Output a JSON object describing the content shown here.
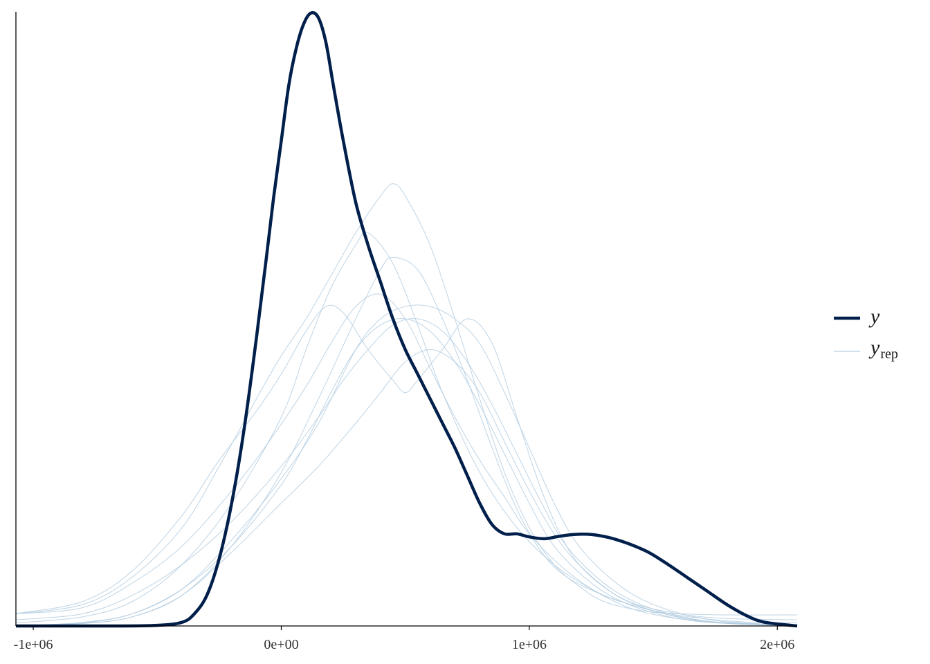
{
  "chart_data": {
    "type": "line",
    "title": "",
    "xlabel": "",
    "ylabel": "",
    "xlim": [
      -1070000,
      2080000
    ],
    "ylim": [
      0,
      1
    ],
    "x_ticks": [
      {
        "value": -1000000,
        "label": "-1e+06"
      },
      {
        "value": 0,
        "label": "0e+00"
      },
      {
        "value": 1000000,
        "label": "1e+06"
      },
      {
        "value": 2000000,
        "label": "2e+06"
      }
    ],
    "y_ticks_shown": false,
    "grid": false,
    "legend": {
      "position": "right",
      "entries": [
        {
          "label": "y",
          "subscript": "",
          "series": "y"
        },
        {
          "label": "y",
          "subscript": "rep",
          "series": "yrep"
        }
      ]
    },
    "colors": {
      "y": "#011f4b",
      "yrep": "#b3cde0"
    },
    "series": [
      {
        "name": "y",
        "role": "y",
        "x": [
          -1070000,
          -700000,
          -500000,
          -400000,
          -350000,
          -300000,
          -250000,
          -200000,
          -150000,
          -100000,
          -60000,
          -30000,
          0,
          30000,
          60000,
          90000,
          120000,
          150000,
          180000,
          210000,
          250000,
          300000,
          350000,
          400000,
          450000,
          500000,
          550000,
          600000,
          650000,
          700000,
          750000,
          800000,
          850000,
          900000,
          950000,
          1000000,
          1060000,
          1120000,
          1180000,
          1250000,
          1320000,
          1400000,
          1480000,
          1560000,
          1640000,
          1720000,
          1800000,
          1880000,
          1950000,
          2080000
        ],
        "y": [
          0.0,
          0.0,
          0.001,
          0.006,
          0.02,
          0.05,
          0.11,
          0.2,
          0.32,
          0.47,
          0.6,
          0.7,
          0.79,
          0.88,
          0.94,
          0.98,
          0.998,
          0.99,
          0.95,
          0.88,
          0.79,
          0.69,
          0.62,
          0.56,
          0.5,
          0.45,
          0.41,
          0.37,
          0.33,
          0.29,
          0.245,
          0.2,
          0.165,
          0.15,
          0.15,
          0.145,
          0.142,
          0.146,
          0.149,
          0.149,
          0.144,
          0.134,
          0.12,
          0.1,
          0.078,
          0.056,
          0.034,
          0.016,
          0.006,
          0.0
        ]
      },
      {
        "name": "",
        "role": "yrep",
        "x": [
          -1070000,
          -800000,
          -600000,
          -400000,
          -250000,
          -100000,
          0,
          100000,
          200000,
          300000,
          400000,
          450000,
          500000,
          600000,
          700000,
          800000,
          900000,
          1000000,
          1100000,
          1200000,
          1300000,
          1450000,
          1600000,
          1800000,
          2080000
        ],
        "y": [
          0.02,
          0.035,
          0.08,
          0.16,
          0.26,
          0.37,
          0.44,
          0.5,
          0.57,
          0.64,
          0.7,
          0.72,
          0.7,
          0.62,
          0.5,
          0.37,
          0.25,
          0.16,
          0.1,
          0.065,
          0.04,
          0.025,
          0.02,
          0.018,
          0.018
        ]
      },
      {
        "name": "",
        "role": "yrep",
        "x": [
          -1070000,
          -800000,
          -600000,
          -400000,
          -200000,
          0,
          150000,
          300000,
          400000,
          450000,
          550000,
          650000,
          750000,
          850000,
          950000,
          1050000,
          1150000,
          1300000,
          1450000,
          1600000,
          1800000,
          2080000
        ],
        "y": [
          0.0,
          0.004,
          0.015,
          0.05,
          0.13,
          0.25,
          0.37,
          0.5,
          0.58,
          0.6,
          0.58,
          0.5,
          0.4,
          0.29,
          0.19,
          0.12,
          0.08,
          0.05,
          0.03,
          0.015,
          0.004,
          0.0
        ]
      },
      {
        "name": "",
        "role": "yrep",
        "x": [
          -1070000,
          -800000,
          -600000,
          -400000,
          -200000,
          0,
          100000,
          200000,
          300000,
          350000,
          450000,
          550000,
          650000,
          800000,
          950000,
          1100000,
          1250000,
          1400000,
          1550000,
          1750000,
          2080000
        ],
        "y": [
          0.005,
          0.015,
          0.04,
          0.1,
          0.2,
          0.34,
          0.45,
          0.55,
          0.62,
          0.64,
          0.59,
          0.49,
          0.38,
          0.25,
          0.16,
          0.1,
          0.06,
          0.03,
          0.015,
          0.006,
          0.002
        ]
      },
      {
        "name": "",
        "role": "yrep",
        "x": [
          -1070000,
          -800000,
          -600000,
          -400000,
          -250000,
          -100000,
          0,
          100000,
          180000,
          250000,
          350000,
          450000,
          500000,
          550000,
          650000,
          750000,
          850000,
          950000,
          1050000,
          1150000,
          1250000,
          1400000,
          1600000,
          1800000,
          2080000
        ],
        "y": [
          0.02,
          0.04,
          0.09,
          0.18,
          0.27,
          0.35,
          0.41,
          0.48,
          0.52,
          0.51,
          0.45,
          0.4,
          0.38,
          0.4,
          0.45,
          0.5,
          0.46,
          0.34,
          0.22,
          0.13,
          0.08,
          0.04,
          0.02,
          0.012,
          0.01
        ]
      },
      {
        "name": "",
        "role": "yrep",
        "x": [
          -1070000,
          -800000,
          -600000,
          -400000,
          -200000,
          0,
          150000,
          300000,
          400000,
          500000,
          600000,
          700000,
          800000,
          900000,
          1000000,
          1100000,
          1200000,
          1350000,
          1500000,
          1700000,
          1900000,
          2080000
        ],
        "y": [
          0.0,
          0.006,
          0.02,
          0.06,
          0.14,
          0.24,
          0.33,
          0.45,
          0.5,
          0.52,
          0.52,
          0.5,
          0.46,
          0.38,
          0.29,
          0.2,
          0.13,
          0.07,
          0.035,
          0.012,
          0.004,
          0.002
        ]
      },
      {
        "name": "",
        "role": "yrep",
        "x": [
          -1070000,
          -800000,
          -600000,
          -400000,
          -200000,
          0,
          100000,
          200000,
          300000,
          400000,
          500000,
          600000,
          700000,
          800000,
          900000,
          1000000,
          1100000,
          1250000,
          1400000,
          1600000,
          1800000,
          2080000
        ],
        "y": [
          0.0,
          0.005,
          0.02,
          0.06,
          0.13,
          0.23,
          0.3,
          0.38,
          0.45,
          0.49,
          0.5,
          0.48,
          0.43,
          0.36,
          0.28,
          0.2,
          0.13,
          0.07,
          0.035,
          0.012,
          0.004,
          0.002
        ]
      },
      {
        "name": "",
        "role": "yrep",
        "x": [
          -1070000,
          -800000,
          -600000,
          -400000,
          -200000,
          0,
          150000,
          300000,
          400000,
          500000,
          600000,
          700000,
          800000,
          900000,
          1000000,
          1100000,
          1200000,
          1350000,
          1500000,
          1700000,
          2080000
        ],
        "y": [
          0.0,
          0.004,
          0.015,
          0.05,
          0.12,
          0.2,
          0.26,
          0.33,
          0.38,
          0.43,
          0.45,
          0.43,
          0.38,
          0.3,
          0.22,
          0.15,
          0.1,
          0.05,
          0.025,
          0.008,
          0.0
        ]
      },
      {
        "name": "",
        "role": "yrep",
        "x": [
          -1070000,
          -800000,
          -600000,
          -400000,
          -200000,
          0,
          150000,
          250000,
          350000,
          450000,
          550000,
          650000,
          750000,
          850000,
          950000,
          1050000,
          1150000,
          1300000,
          1450000,
          1650000,
          1850000,
          2080000
        ],
        "y": [
          0.01,
          0.02,
          0.05,
          0.1,
          0.17,
          0.26,
          0.34,
          0.4,
          0.45,
          0.49,
          0.5,
          0.48,
          0.43,
          0.36,
          0.28,
          0.2,
          0.13,
          0.07,
          0.035,
          0.012,
          0.004,
          0.002
        ]
      },
      {
        "name": "",
        "role": "yrep",
        "x": [
          -1070000,
          -800000,
          -600000,
          -400000,
          -200000,
          -50000,
          100000,
          200000,
          300000,
          400000,
          500000,
          600000,
          700000,
          800000,
          900000,
          1000000,
          1150000,
          1300000,
          1500000,
          1700000,
          1900000,
          2080000
        ],
        "y": [
          0.02,
          0.03,
          0.07,
          0.13,
          0.22,
          0.3,
          0.39,
          0.46,
          0.52,
          0.54,
          0.5,
          0.42,
          0.34,
          0.27,
          0.21,
          0.15,
          0.09,
          0.05,
          0.025,
          0.012,
          0.006,
          0.005
        ]
      }
    ]
  }
}
